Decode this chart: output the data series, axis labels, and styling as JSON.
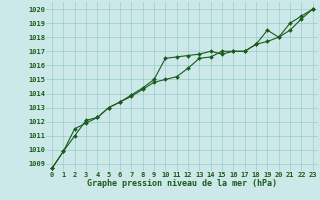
{
  "xlabel": "Graphe pression niveau de la mer (hPa)",
  "bg_color": "#cce8e8",
  "grid_color": "#99cccc",
  "line_color": "#1a5c1a",
  "marker_color": "#1a5c1a",
  "ylim": [
    1008.5,
    1020.5
  ],
  "xlim": [
    -0.5,
    23.5
  ],
  "yticks": [
    1009,
    1010,
    1011,
    1012,
    1013,
    1014,
    1015,
    1016,
    1017,
    1018,
    1019,
    1020
  ],
  "xticks": [
    0,
    1,
    2,
    3,
    4,
    5,
    6,
    7,
    8,
    9,
    10,
    11,
    12,
    13,
    14,
    15,
    16,
    17,
    18,
    19,
    20,
    21,
    22,
    23
  ],
  "series1_x": [
    0,
    1,
    2,
    3,
    4,
    5,
    6,
    7,
    8,
    9,
    10,
    11,
    12,
    13,
    14,
    15,
    16,
    17,
    18,
    19,
    20,
    21,
    22,
    23
  ],
  "series1_y": [
    1008.7,
    1009.9,
    1011.0,
    1012.1,
    1012.3,
    1013.0,
    1013.4,
    1013.8,
    1014.3,
    1014.8,
    1015.0,
    1015.2,
    1015.8,
    1016.5,
    1016.6,
    1017.0,
    1017.0,
    1017.0,
    1017.5,
    1017.7,
    1018.0,
    1019.0,
    1019.5,
    1020.0
  ],
  "series2_x": [
    0,
    1,
    2,
    3,
    4,
    5,
    6,
    7,
    8,
    9,
    10,
    11,
    12,
    13,
    14,
    15,
    16,
    17,
    18,
    19,
    20,
    21,
    22,
    23
  ],
  "series2_y": [
    1008.7,
    1009.9,
    1011.5,
    1011.9,
    1012.3,
    1013.0,
    1013.4,
    1013.9,
    1014.4,
    1015.0,
    1016.5,
    1016.6,
    1016.7,
    1016.8,
    1017.0,
    1016.8,
    1017.0,
    1017.0,
    1017.5,
    1018.5,
    1018.0,
    1018.5,
    1019.3,
    1020.0
  ],
  "tick_fontsize": 5.0,
  "label_fontsize": 6.0,
  "linewidth": 0.8,
  "markersize": 2.0
}
